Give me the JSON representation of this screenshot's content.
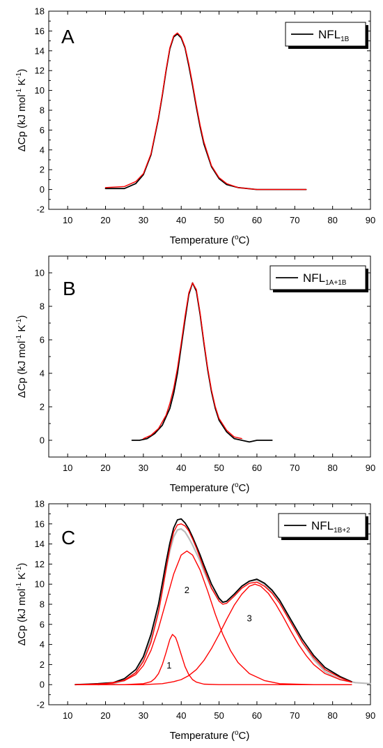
{
  "chart_data": [
    {
      "type": "line",
      "panel_label": "A",
      "xlabel": "Temperature",
      "xlabel_unit_open": "(",
      "xlabel_unit_sup": "o",
      "xlabel_unit_close": "C)",
      "ylabel": "ΔCp (kJ mol",
      "ylabel_sup1": "-1",
      "ylabel_mid": " K",
      "ylabel_sup2": "-1",
      "ylabel_close": ")",
      "xlim": [
        5,
        90
      ],
      "ylim": [
        -2,
        18
      ],
      "x_ticks": [
        "10",
        "20",
        "30",
        "40",
        "50",
        "60",
        "70",
        "80",
        "90"
      ],
      "y_ticks": [
        "-2",
        "0",
        "2",
        "4",
        "6",
        "8",
        "10",
        "12",
        "14",
        "16",
        "18"
      ],
      "legend": {
        "name": "NFL",
        "sub": "1B"
      },
      "series": [
        {
          "name": "NFL1B",
          "color": "#000000",
          "x": [
            20,
            25,
            28,
            30,
            32,
            34,
            35,
            36,
            37,
            38,
            39,
            40,
            41,
            42,
            43,
            44,
            45,
            46,
            48,
            50,
            52,
            55,
            60,
            65,
            73
          ],
          "y": [
            0.1,
            0.1,
            0.6,
            1.5,
            3.5,
            7.2,
            9.5,
            12.0,
            14.2,
            15.4,
            15.7,
            15.3,
            14.3,
            12.5,
            10.5,
            8.3,
            6.3,
            4.6,
            2.3,
            1.1,
            0.5,
            0.2,
            0.0,
            0.0,
            0.0
          ]
        },
        {
          "name": "fit",
          "color": "#ff0000",
          "x": [
            20,
            25,
            28,
            30,
            32,
            34,
            35,
            36,
            37,
            38,
            39,
            40,
            41,
            42,
            43,
            44,
            45,
            46,
            48,
            50,
            52,
            55,
            60,
            65,
            73
          ],
          "y": [
            0.2,
            0.3,
            0.8,
            1.6,
            3.6,
            7.3,
            9.6,
            12.1,
            14.3,
            15.5,
            15.8,
            15.4,
            14.4,
            12.7,
            10.7,
            8.5,
            6.5,
            4.8,
            2.4,
            1.2,
            0.6,
            0.2,
            0.0,
            0.0,
            0.0
          ]
        }
      ]
    },
    {
      "type": "line",
      "panel_label": "B",
      "xlabel": "Temperature",
      "xlabel_unit_open": "(",
      "xlabel_unit_sup": "o",
      "xlabel_unit_close": "C)",
      "ylabel": "ΔCp (kJ mol",
      "ylabel_sup1": "-1",
      "ylabel_mid": " K",
      "ylabel_sup2": "-1",
      "ylabel_close": ")",
      "xlim": [
        5,
        90
      ],
      "ylim": [
        -1,
        11
      ],
      "x_ticks": [
        "10",
        "20",
        "30",
        "40",
        "50",
        "60",
        "70",
        "80",
        "90"
      ],
      "y_ticks": [
        "0",
        "2",
        "4",
        "6",
        "8",
        "10"
      ],
      "legend": {
        "name": "NFL",
        "sub": "1A+1B"
      },
      "series": [
        {
          "name": "NFL1A+1B",
          "color": "#000000",
          "x": [
            27,
            29,
            31,
            33,
            35,
            37,
            38,
            39,
            40,
            41,
            42,
            43,
            44,
            45,
            46,
            47,
            48,
            49,
            50,
            52,
            54,
            56,
            58,
            60,
            62,
            64
          ],
          "y": [
            0.0,
            0.0,
            0.1,
            0.4,
            0.9,
            1.9,
            2.8,
            4.0,
            5.6,
            7.2,
            8.7,
            9.4,
            8.9,
            7.5,
            5.8,
            4.2,
            2.9,
            1.9,
            1.2,
            0.5,
            0.1,
            0.0,
            -0.1,
            0.0,
            0.0,
            0.0
          ]
        },
        {
          "name": "fit",
          "color": "#ff0000",
          "x": [
            30,
            32,
            34,
            36,
            37,
            38,
            39,
            40,
            41,
            42,
            43,
            44,
            45,
            46,
            47,
            48,
            49,
            50,
            52,
            54,
            56
          ],
          "y": [
            0.1,
            0.3,
            0.7,
            1.5,
            2.2,
            3.1,
            4.3,
            5.8,
            7.4,
            8.8,
            9.4,
            9.0,
            7.6,
            5.9,
            4.3,
            3.0,
            2.0,
            1.3,
            0.6,
            0.2,
            0.1
          ]
        }
      ]
    },
    {
      "type": "line",
      "panel_label": "C",
      "xlabel": "Temperature",
      "xlabel_unit_open": "(",
      "xlabel_unit_sup": "o",
      "xlabel_unit_close": "C)",
      "ylabel": "ΔCp (kJ mol",
      "ylabel_sup1": "-1",
      "ylabel_mid": " K",
      "ylabel_sup2": "-1",
      "ylabel_close": ")",
      "xlim": [
        5,
        90
      ],
      "ylim": [
        -2,
        18
      ],
      "x_ticks": [
        "10",
        "20",
        "30",
        "40",
        "50",
        "60",
        "70",
        "80",
        "90"
      ],
      "y_ticks": [
        "-2",
        "0",
        "2",
        "4",
        "6",
        "8",
        "10",
        "12",
        "14",
        "16",
        "18"
      ],
      "legend": {
        "name": "NFL",
        "sub": "1B+2"
      },
      "peak_labels": [
        {
          "text": "1",
          "x": 36.8,
          "y": 1.6
        },
        {
          "text": "2",
          "x": 41.5,
          "y": 9.1
        },
        {
          "text": "3",
          "x": 58.0,
          "y": 6.3
        }
      ],
      "series": [
        {
          "name": "data",
          "color": "#bbbbbb",
          "x": [
            18,
            22,
            25,
            28,
            30,
            32,
            34,
            35,
            36,
            37,
            38,
            39,
            40,
            41,
            42,
            43,
            44,
            45,
            46,
            48,
            50,
            51,
            52,
            54,
            56,
            58,
            60,
            62,
            64,
            66,
            68,
            70,
            72,
            75,
            78,
            82,
            86,
            90
          ],
          "y": [
            0.0,
            0.1,
            0.4,
            1.2,
            2.5,
            4.5,
            7.5,
            9.5,
            11.5,
            13.3,
            14.7,
            15.4,
            15.5,
            15.2,
            14.6,
            13.9,
            13.1,
            12.3,
            11.3,
            9.6,
            8.5,
            8.2,
            8.3,
            9.0,
            9.8,
            10.3,
            10.4,
            10.0,
            9.2,
            8.2,
            6.9,
            5.6,
            4.2,
            2.5,
            1.3,
            0.5,
            0.2,
            0.1
          ]
        },
        {
          "name": "NFL1B+2",
          "color": "#000000",
          "x": [
            12,
            18,
            22,
            25,
            28,
            30,
            32,
            34,
            35,
            36,
            37,
            38,
            39,
            40,
            41,
            42,
            43,
            44,
            45,
            46,
            48,
            50,
            51,
            52,
            54,
            56,
            58,
            60,
            62,
            64,
            66,
            68,
            70,
            72,
            75,
            78,
            82,
            85
          ],
          "y": [
            0.0,
            0.1,
            0.2,
            0.6,
            1.5,
            2.8,
            5.0,
            8.0,
            10.1,
            12.2,
            14.1,
            15.6,
            16.4,
            16.5,
            16.1,
            15.5,
            14.7,
            13.8,
            12.9,
            11.9,
            10.0,
            8.6,
            8.2,
            8.3,
            9.0,
            9.8,
            10.3,
            10.5,
            10.1,
            9.4,
            8.4,
            7.1,
            5.8,
            4.5,
            2.9,
            1.7,
            0.8,
            0.3
          ]
        },
        {
          "name": "peak 1",
          "color": "#ff0000",
          "x": [
            12,
            25,
            30,
            32,
            33,
            34,
            35,
            36,
            37,
            37.7,
            38.5,
            39,
            40,
            41,
            42,
            43,
            44,
            46,
            50,
            60,
            85
          ],
          "y": [
            0.0,
            0.0,
            0.1,
            0.3,
            0.6,
            1.1,
            2.0,
            3.2,
            4.5,
            5.0,
            4.7,
            4.2,
            3.0,
            1.8,
            1.0,
            0.5,
            0.25,
            0.05,
            0.0,
            0.0,
            0.0
          ]
        },
        {
          "name": "peak 2",
          "color": "#ff0000",
          "x": [
            12,
            20,
            25,
            28,
            30,
            32,
            34,
            36,
            38,
            40,
            41.5,
            43,
            45,
            47,
            49,
            51,
            53,
            55,
            58,
            62,
            66,
            70,
            75,
            85
          ],
          "y": [
            0.0,
            0.1,
            0.4,
            1.0,
            1.9,
            3.4,
            5.6,
            8.3,
            11.0,
            12.9,
            13.3,
            12.9,
            11.4,
            9.3,
            7.0,
            5.0,
            3.4,
            2.2,
            1.1,
            0.4,
            0.1,
            0.05,
            0.0,
            0.0
          ]
        },
        {
          "name": "peak 3",
          "color": "#ff0000",
          "x": [
            12,
            30,
            35,
            38,
            40,
            42,
            44,
            46,
            48,
            50,
            52,
            54,
            56,
            58,
            59.5,
            61,
            63,
            65,
            67,
            69,
            71,
            73,
            75,
            78,
            82,
            85
          ],
          "y": [
            0.0,
            0.0,
            0.1,
            0.3,
            0.5,
            0.9,
            1.5,
            2.4,
            3.6,
            5.0,
            6.5,
            7.9,
            9.0,
            9.8,
            10.0,
            9.8,
            9.1,
            8.0,
            6.7,
            5.3,
            4.0,
            2.9,
            2.0,
            1.1,
            0.5,
            0.25
          ]
        },
        {
          "name": "fit sum",
          "color": "#ff0000",
          "x": [
            12,
            18,
            22,
            25,
            28,
            30,
            32,
            34,
            35,
            36,
            37,
            38,
            39,
            40,
            41,
            42,
            43,
            44,
            45,
            46,
            48,
            50,
            51,
            52,
            54,
            56,
            58,
            60,
            62,
            64,
            66,
            68,
            70,
            72,
            75,
            78,
            82,
            85
          ],
          "y": [
            0.0,
            0.05,
            0.15,
            0.45,
            1.2,
            2.3,
            4.2,
            7.2,
            9.3,
            11.5,
            13.6,
            15.2,
            15.9,
            16.0,
            15.8,
            15.3,
            14.5,
            13.6,
            12.6,
            11.6,
            9.6,
            8.3,
            8.0,
            8.1,
            8.8,
            9.6,
            10.1,
            10.2,
            9.8,
            9.1,
            8.1,
            6.8,
            5.5,
            4.2,
            2.7,
            1.5,
            0.7,
            0.25
          ]
        }
      ]
    }
  ]
}
